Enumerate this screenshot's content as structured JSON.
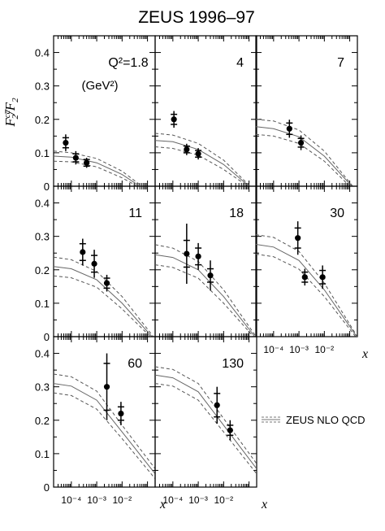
{
  "title": "ZEUS 1996–97",
  "ylabel": {
    "main": "F",
    "sup": "cc̅",
    "sub": "2",
    "rest": "/F",
    "sub2": "2"
  },
  "xlabel": "x",
  "q2_unit": "(GeV²)",
  "legend_label": "ZEUS NLO QCD",
  "y_ticks": [
    "0",
    "0.1",
    "0.2",
    "0.3",
    "0.4"
  ],
  "x_ticks": [
    "10⁻⁴",
    "10⁻³",
    "10⁻²"
  ],
  "chart_data": [
    {
      "type": "scatter",
      "panel": 1,
      "q2_label": "Q²=1.8",
      "xlim": [
        2e-05,
        0.2
      ],
      "ylim": [
        0,
        0.45
      ],
      "log_x": true,
      "points": [
        {
          "x": 6e-05,
          "y": 0.13,
          "err_stat": 0.015,
          "err_tot": 0.025
        },
        {
          "x": 0.00015,
          "y": 0.085,
          "err_stat": 0.012,
          "err_tot": 0.02
        },
        {
          "x": 0.0004,
          "y": 0.07,
          "err_stat": 0.01,
          "err_tot": 0.015
        }
      ],
      "qcd_central": [
        [
          2e-05,
          0.09
        ],
        [
          0.0001,
          0.087
        ],
        [
          0.001,
          0.07
        ],
        [
          0.01,
          0.035
        ],
        [
          0.05,
          0.0
        ]
      ],
      "qcd_upper": [
        [
          2e-05,
          0.105
        ],
        [
          0.0001,
          0.1
        ],
        [
          0.001,
          0.083
        ],
        [
          0.01,
          0.045
        ],
        [
          0.06,
          0.0
        ]
      ],
      "qcd_lower": [
        [
          2e-05,
          0.075
        ],
        [
          0.0001,
          0.073
        ],
        [
          0.001,
          0.058
        ],
        [
          0.01,
          0.025
        ],
        [
          0.04,
          0.0
        ]
      ]
    },
    {
      "type": "scatter",
      "panel": 2,
      "q2_label": "4",
      "xlim": [
        2e-05,
        0.2
      ],
      "ylim": [
        0,
        0.45
      ],
      "log_x": true,
      "points": [
        {
          "x": 0.00011,
          "y": 0.2,
          "err_stat": 0.015,
          "err_tot": 0.025
        },
        {
          "x": 0.00035,
          "y": 0.11,
          "err_stat": 0.01,
          "err_tot": 0.017
        },
        {
          "x": 0.001,
          "y": 0.097,
          "err_stat": 0.01,
          "err_tot": 0.017
        }
      ],
      "qcd_central": [
        [
          2e-05,
          0.137
        ],
        [
          0.0001,
          0.133
        ],
        [
          0.001,
          0.11
        ],
        [
          0.01,
          0.065
        ],
        [
          0.1,
          0.0
        ]
      ],
      "qcd_upper": [
        [
          2e-05,
          0.158
        ],
        [
          0.0001,
          0.153
        ],
        [
          0.001,
          0.128
        ],
        [
          0.01,
          0.078
        ],
        [
          0.11,
          0.0
        ]
      ],
      "qcd_lower": [
        [
          2e-05,
          0.118
        ],
        [
          0.0001,
          0.113
        ],
        [
          0.001,
          0.093
        ],
        [
          0.01,
          0.05
        ],
        [
          0.09,
          0.0
        ]
      ]
    },
    {
      "type": "scatter",
      "panel": 3,
      "q2_label": "7",
      "xlim": [
        2e-05,
        0.2
      ],
      "ylim": [
        0,
        0.45
      ],
      "log_x": true,
      "points": [
        {
          "x": 0.00042,
          "y": 0.172,
          "err_stat": 0.017,
          "err_tot": 0.027
        },
        {
          "x": 0.0012,
          "y": 0.13,
          "err_stat": 0.013,
          "err_tot": 0.022
        }
      ],
      "qcd_central": [
        [
          2e-05,
          0.178
        ],
        [
          0.0001,
          0.172
        ],
        [
          0.001,
          0.148
        ],
        [
          0.01,
          0.09
        ],
        [
          0.12,
          0.0
        ]
      ],
      "qcd_upper": [
        [
          2e-05,
          0.2
        ],
        [
          0.0001,
          0.195
        ],
        [
          0.001,
          0.168
        ],
        [
          0.01,
          0.105
        ],
        [
          0.13,
          0.0
        ]
      ],
      "qcd_lower": [
        [
          2e-05,
          0.155
        ],
        [
          0.0001,
          0.15
        ],
        [
          0.001,
          0.128
        ],
        [
          0.01,
          0.075
        ],
        [
          0.1,
          0.0
        ]
      ]
    },
    {
      "type": "scatter",
      "panel": 4,
      "q2_label": "11",
      "xlim": [
        2e-05,
        0.2
      ],
      "ylim": [
        0,
        0.45
      ],
      "log_x": true,
      "points": [
        {
          "x": 0.00028,
          "y": 0.253,
          "err_stat": 0.025,
          "err_tot": 0.04
        },
        {
          "x": 0.0008,
          "y": 0.218,
          "err_stat": 0.025,
          "err_tot": 0.042
        },
        {
          "x": 0.0025,
          "y": 0.16,
          "err_stat": 0.015,
          "err_tot": 0.025
        }
      ],
      "qcd_central": [
        [
          2e-05,
          0.21
        ],
        [
          0.0001,
          0.203
        ],
        [
          0.001,
          0.17
        ],
        [
          0.01,
          0.1
        ],
        [
          0.15,
          0.0
        ]
      ],
      "qcd_upper": [
        [
          2e-05,
          0.238
        ],
        [
          0.0001,
          0.23
        ],
        [
          0.001,
          0.195
        ],
        [
          0.01,
          0.12
        ],
        [
          0.17,
          0.0
        ]
      ],
      "qcd_lower": [
        [
          2e-05,
          0.182
        ],
        [
          0.0001,
          0.176
        ],
        [
          0.001,
          0.148
        ],
        [
          0.01,
          0.083
        ],
        [
          0.13,
          0.0
        ]
      ]
    },
    {
      "type": "scatter",
      "panel": 5,
      "q2_label": "18",
      "xlim": [
        2e-05,
        0.2
      ],
      "ylim": [
        0,
        0.45
      ],
      "log_x": true,
      "points": [
        {
          "x": 0.00035,
          "y": 0.248,
          "err_stat": 0.04,
          "err_tot": 0.09
        },
        {
          "x": 0.001,
          "y": 0.24,
          "err_stat": 0.025,
          "err_tot": 0.04
        },
        {
          "x": 0.003,
          "y": 0.183,
          "err_stat": 0.02,
          "err_tot": 0.045
        }
      ],
      "qcd_central": [
        [
          2e-05,
          0.245
        ],
        [
          0.0001,
          0.237
        ],
        [
          0.001,
          0.2
        ],
        [
          0.01,
          0.12
        ],
        [
          0.17,
          0.0
        ]
      ],
      "qcd_upper": [
        [
          2e-05,
          0.275
        ],
        [
          0.0001,
          0.265
        ],
        [
          0.001,
          0.225
        ],
        [
          0.01,
          0.14
        ],
        [
          0.19,
          0.0
        ]
      ],
      "qcd_lower": [
        [
          2e-05,
          0.215
        ],
        [
          0.0001,
          0.207
        ],
        [
          0.001,
          0.175
        ],
        [
          0.01,
          0.1
        ],
        [
          0.15,
          0.0
        ]
      ]
    },
    {
      "type": "scatter",
      "panel": 6,
      "q2_label": "30",
      "xlim": [
        2e-05,
        0.2
      ],
      "ylim": [
        0,
        0.45
      ],
      "log_x": true,
      "points": [
        {
          "x": 0.0009,
          "y": 0.295,
          "err_stat": 0.03,
          "err_tot": 0.05
        },
        {
          "x": 0.0017,
          "y": 0.178,
          "err_stat": 0.015,
          "err_tot": 0.025
        },
        {
          "x": 0.0085,
          "y": 0.178,
          "err_stat": 0.02,
          "err_tot": 0.035
        }
      ],
      "qcd_central": [
        [
          2e-05,
          0.276
        ],
        [
          0.0001,
          0.268
        ],
        [
          0.001,
          0.228
        ],
        [
          0.01,
          0.14
        ],
        [
          0.19,
          0.0
        ]
      ],
      "qcd_upper": [
        [
          2e-05,
          0.305
        ],
        [
          0.0001,
          0.297
        ],
        [
          0.001,
          0.255
        ],
        [
          0.01,
          0.16
        ],
        [
          0.2,
          0.0
        ]
      ],
      "qcd_lower": [
        [
          2e-05,
          0.247
        ],
        [
          0.0001,
          0.239
        ],
        [
          0.001,
          0.202
        ],
        [
          0.01,
          0.12
        ],
        [
          0.17,
          0.0
        ]
      ]
    },
    {
      "type": "scatter",
      "panel": 7,
      "q2_label": "60",
      "xlim": [
        2e-05,
        0.2
      ],
      "ylim": [
        0,
        0.45
      ],
      "log_x": true,
      "points": [
        {
          "x": 0.0025,
          "y": 0.3,
          "err_stat": 0.07,
          "err_tot": 0.1
        },
        {
          "x": 0.009,
          "y": 0.22,
          "err_stat": 0.02,
          "err_tot": 0.035
        }
      ],
      "qcd_central": [
        [
          2e-05,
          0.31
        ],
        [
          0.0001,
          0.302
        ],
        [
          0.001,
          0.26
        ],
        [
          0.01,
          0.165
        ],
        [
          0.2,
          0.04
        ]
      ],
      "qcd_upper": [
        [
          2e-05,
          0.338
        ],
        [
          0.0001,
          0.33
        ],
        [
          0.001,
          0.287
        ],
        [
          0.01,
          0.185
        ],
        [
          0.2,
          0.055
        ]
      ],
      "qcd_lower": [
        [
          2e-05,
          0.282
        ],
        [
          0.0001,
          0.274
        ],
        [
          0.001,
          0.233
        ],
        [
          0.01,
          0.145
        ],
        [
          0.2,
          0.025
        ]
      ]
    },
    {
      "type": "scatter",
      "panel": 8,
      "q2_label": "130",
      "xlim": [
        2e-05,
        0.2
      ],
      "ylim": [
        0,
        0.45
      ],
      "log_x": true,
      "points": [
        {
          "x": 0.0055,
          "y": 0.245,
          "err_stat": 0.035,
          "err_tot": 0.055
        },
        {
          "x": 0.018,
          "y": 0.17,
          "err_stat": 0.015,
          "err_tot": 0.03
        }
      ],
      "qcd_central": [
        [
          2e-05,
          0.335
        ],
        [
          0.0001,
          0.327
        ],
        [
          0.001,
          0.285
        ],
        [
          0.01,
          0.185
        ],
        [
          0.2,
          0.055
        ]
      ],
      "qcd_upper": [
        [
          2e-05,
          0.36
        ],
        [
          0.0001,
          0.352
        ],
        [
          0.001,
          0.31
        ],
        [
          0.01,
          0.205
        ],
        [
          0.2,
          0.07
        ]
      ],
      "qcd_lower": [
        [
          2e-05,
          0.31
        ],
        [
          0.0001,
          0.302
        ],
        [
          0.001,
          0.26
        ],
        [
          0.01,
          0.165
        ],
        [
          0.2,
          0.04
        ]
      ]
    }
  ]
}
